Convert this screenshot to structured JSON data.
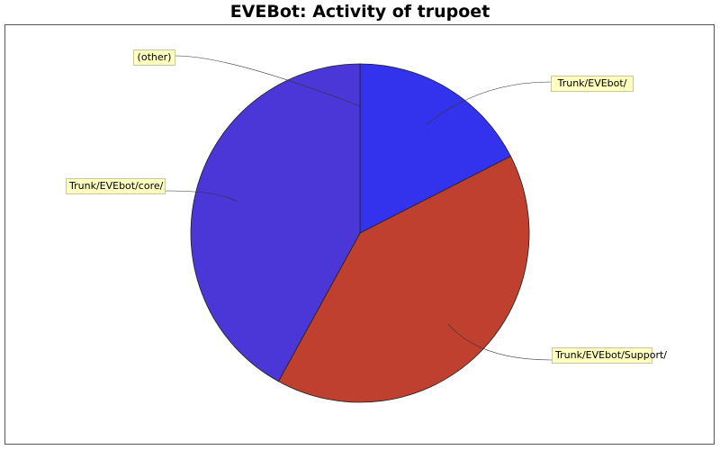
{
  "chart_data": {
    "type": "pie",
    "title": "EVEBot: Activity of trupoet",
    "start_angle_deg": 90,
    "direction": "clockwise",
    "slices": [
      {
        "label": "Trunk/EVEbot/",
        "value": 17.5,
        "color": "#3333ee"
      },
      {
        "label": "Trunk/EVEbot/Support/",
        "value": 40.5,
        "color": "#c04030"
      },
      {
        "label": "Trunk/EVEbot/core/",
        "value": 42.0,
        "color": "#4b36d8"
      },
      {
        "label": "(other)",
        "value": 0.0,
        "color": "#4b36d8"
      }
    ]
  }
}
